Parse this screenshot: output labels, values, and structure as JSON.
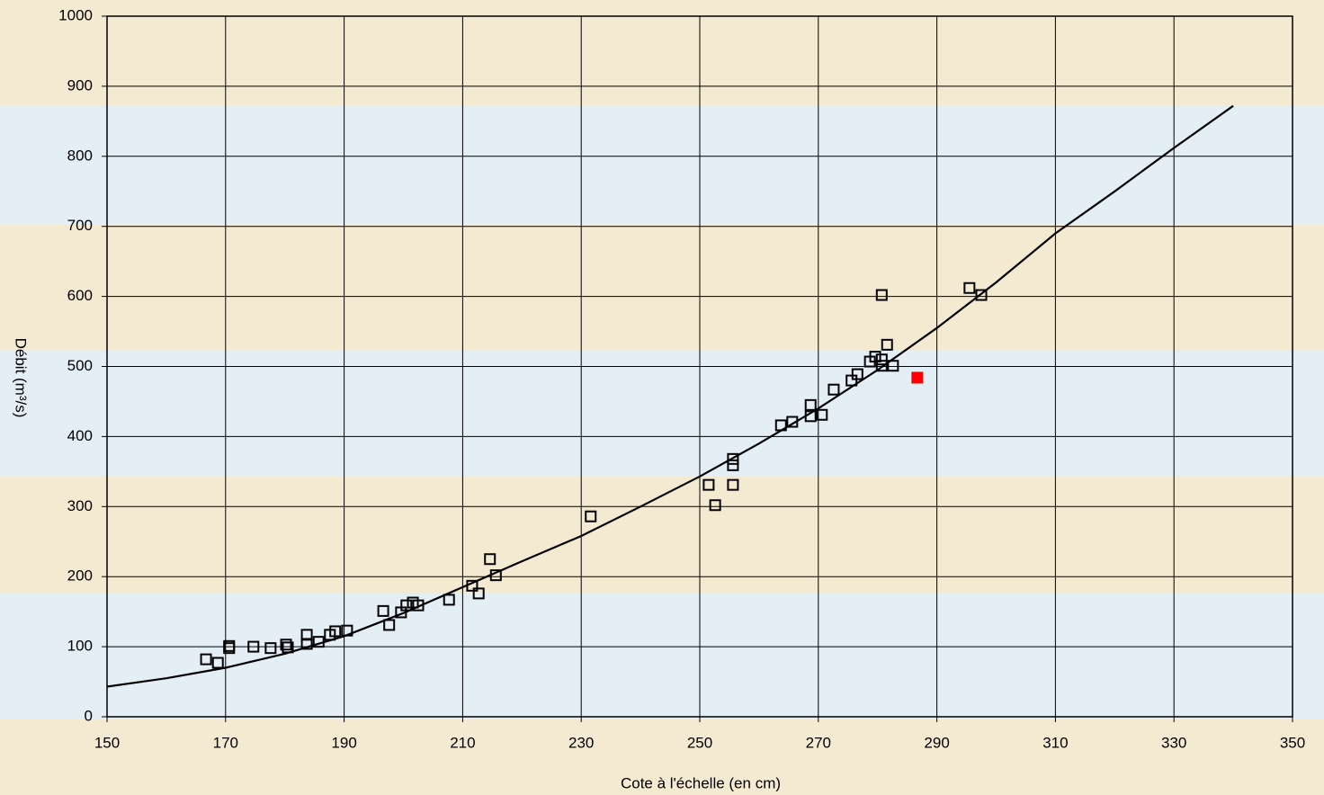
{
  "chart_data": {
    "type": "scatter",
    "x_label": "Cote à l'échelle (en cm)",
    "y_label": "Débit (m³/s)",
    "xlim": [
      150,
      350
    ],
    "xticks": [
      150,
      170,
      190,
      210,
      230,
      250,
      270,
      290,
      310,
      330,
      350
    ],
    "ylim": [
      0,
      1000
    ],
    "yticks": [
      0,
      100,
      200,
      300,
      400,
      500,
      600,
      700,
      800,
      900,
      1000
    ],
    "grid": true,
    "series": [
      {
        "mode": "markers",
        "marker": "open-square",
        "color": "#000000",
        "x": [
          166.7,
          168.7,
          170.6,
          170.6,
          174.7,
          177.6,
          180.2,
          180.5,
          183.7,
          183.7,
          185.7,
          187.6,
          188.5,
          190.5,
          196.6,
          197.6,
          199.6,
          200.5,
          201.6,
          202.5,
          207.7,
          211.6,
          212.7,
          214.6,
          215.6,
          231.6,
          251.5,
          252.6,
          255.6,
          255.6,
          255.6,
          263.7,
          265.6,
          268.7,
          268.7,
          270.6,
          272.6,
          275.6,
          276.6,
          278.7,
          279.6,
          280.7,
          280.7,
          280.7,
          281.6,
          282.6,
          295.5,
          297.5
        ],
        "values": [
          82,
          77,
          101,
          98,
          100,
          98,
          103,
          99,
          117,
          104,
          107,
          117,
          122,
          123,
          151,
          131,
          149,
          159,
          163,
          159,
          167,
          187,
          176,
          225,
          202,
          286,
          331,
          302,
          368,
          359,
          331,
          416,
          421,
          445,
          429,
          431,
          467,
          480,
          489,
          507,
          514,
          602,
          510,
          501,
          531,
          501,
          612,
          602
        ]
      },
      {
        "mode": "markers",
        "marker": "filled-square",
        "color": "#ff0000",
        "x": [
          286.7
        ],
        "values": [
          484
        ]
      },
      {
        "mode": "line",
        "color": "#000000",
        "x": [
          150,
          160,
          170,
          180,
          190,
          200,
          210,
          220,
          230,
          240,
          250,
          260,
          270,
          280,
          290,
          300,
          310,
          320,
          330,
          340
        ],
        "values": [
          43,
          55,
          70,
          90,
          115,
          148,
          185,
          222,
          258,
          300,
          343,
          390,
          440,
          495,
          555,
          620,
          690,
          750,
          812,
          872
        ]
      }
    ]
  }
}
